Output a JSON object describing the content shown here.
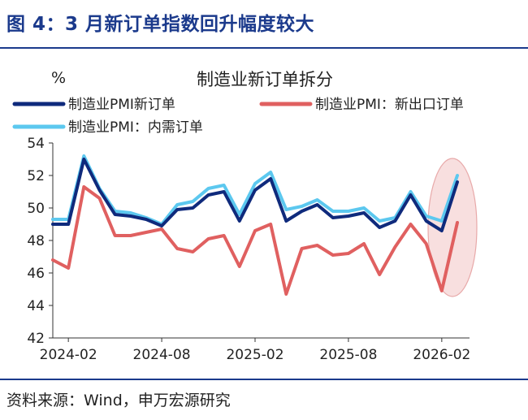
{
  "figure": {
    "title": "图 4：3 月新订单指数回升幅度较大",
    "source": "资料来源：Wind，申万宏源研究"
  },
  "colors": {
    "dark_blue": "#0f2a7c",
    "red": "#e06060",
    "light_blue": "#5cc8ef",
    "title_blue": "#1b3a8c",
    "highlight": "#f2c4c4"
  },
  "chart_data": {
    "type": "line",
    "title": "制造业新订单拆分",
    "ylabel": "%",
    "ylim": [
      42,
      54
    ],
    "yticks": [
      42,
      44,
      46,
      48,
      50,
      52,
      54
    ],
    "grid": false,
    "legend_position": "top",
    "x": [
      "2024-01",
      "2024-02",
      "2024-03",
      "2024-04",
      "2024-05",
      "2024-06",
      "2024-07",
      "2024-08",
      "2024-09",
      "2024-10",
      "2024-11",
      "2024-12",
      "2025-01",
      "2025-02",
      "2025-03",
      "2025-04",
      "2025-05",
      "2025-06",
      "2025-07",
      "2025-08",
      "2025-09",
      "2025-10",
      "2025-11",
      "2025-12",
      "2026-01",
      "2026-02",
      "2026-03"
    ],
    "xtick_labels": [
      "2024-02",
      "2024-08",
      "2025-02",
      "2025-08",
      "2026-02"
    ],
    "series": [
      {
        "name": "制造业PMI新订单",
        "color": "#0f2a7c",
        "values": [
          49.0,
          49.0,
          53.0,
          51.1,
          49.6,
          49.5,
          49.3,
          48.9,
          49.9,
          50.0,
          50.8,
          51.0,
          49.2,
          51.1,
          51.8,
          49.2,
          49.8,
          50.2,
          49.4,
          49.5,
          49.7,
          48.8,
          49.2,
          50.8,
          49.2,
          48.6,
          51.6
        ]
      },
      {
        "name": "制造业PMI：新出口订单",
        "color": "#e06060",
        "values": [
          46.8,
          46.3,
          51.3,
          50.6,
          48.3,
          48.3,
          48.5,
          48.7,
          47.5,
          47.3,
          48.1,
          48.3,
          46.4,
          48.6,
          49.0,
          44.7,
          47.5,
          47.7,
          47.1,
          47.2,
          47.8,
          45.9,
          47.6,
          49.0,
          47.8,
          44.9,
          49.1
        ]
      },
      {
        "name": "制造业PMI：内需订单",
        "color": "#5cc8ef",
        "values": [
          49.3,
          49.3,
          53.2,
          51.2,
          49.8,
          49.7,
          49.4,
          49.0,
          50.2,
          50.4,
          51.2,
          51.4,
          49.6,
          51.5,
          52.2,
          49.9,
          50.1,
          50.5,
          49.8,
          49.8,
          50.0,
          49.2,
          49.4,
          51.0,
          49.5,
          49.2,
          52.0
        ]
      }
    ]
  }
}
